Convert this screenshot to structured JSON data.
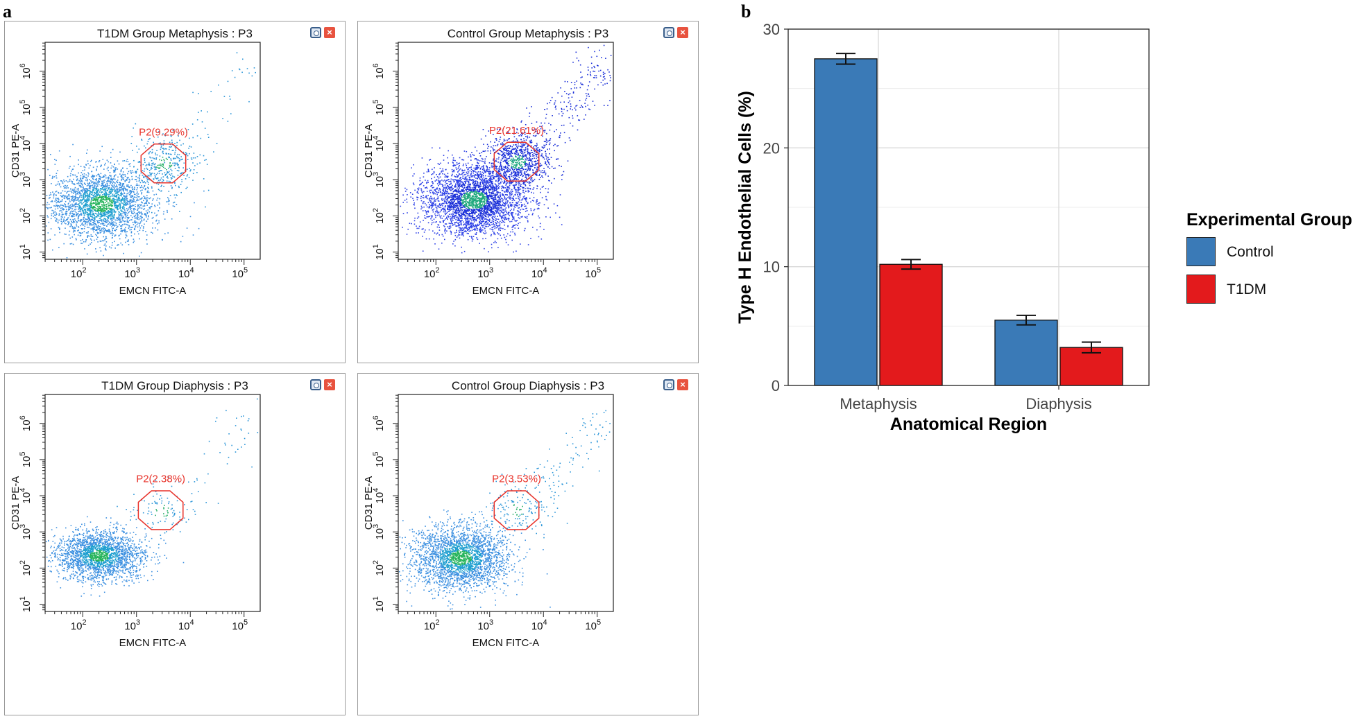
{
  "panel_labels": {
    "a": "a",
    "b": "b"
  },
  "flow_panels": [
    {
      "title": "T1DM Group Metaphysis : P3",
      "gate_label": "P2(9.29%)",
      "gate_pct": 9.29,
      "xlabel": "EMCN FITC-A",
      "ylabel": "CD31 PE-A",
      "palette": "green-blue"
    },
    {
      "title": "Control Group Metaphysis : P3",
      "gate_label": "P2(21.61%)",
      "gate_pct": 21.61,
      "xlabel": "EMCN FITC-A",
      "ylabel": "CD31 PE-A",
      "palette": "dark-blue"
    },
    {
      "title": "T1DM Group Diaphysis : P3",
      "gate_label": "P2(2.38%)",
      "gate_pct": 2.38,
      "xlabel": "EMCN FITC-A",
      "ylabel": "CD31 PE-A",
      "palette": "green-blue"
    },
    {
      "title": "Control Group Diaphysis : P3",
      "gate_label": "P2(3.53%)",
      "gate_pct": 3.53,
      "xlabel": "EMCN FITC-A",
      "ylabel": "CD31 PE-A",
      "palette": "green-blue"
    }
  ],
  "flow_axis": {
    "x_ticks": [
      {
        "base": "10",
        "exp": "2"
      },
      {
        "base": "10",
        "exp": "3"
      },
      {
        "base": "10",
        "exp": "4"
      },
      {
        "base": "10",
        "exp": "5"
      }
    ],
    "y_ticks": [
      {
        "base": "10",
        "exp": "1"
      },
      {
        "base": "10",
        "exp": "2"
      },
      {
        "base": "10",
        "exp": "3"
      },
      {
        "base": "10",
        "exp": "4"
      },
      {
        "base": "10",
        "exp": "5"
      },
      {
        "base": "10",
        "exp": "6"
      }
    ]
  },
  "chart_data": {
    "type": "bar",
    "title": "",
    "categories": [
      "Metaphysis",
      "Diaphysis"
    ],
    "series": [
      {
        "name": "Control",
        "color": "#3a7ab7",
        "values": [
          27.5,
          5.5
        ],
        "errors": [
          0.45,
          0.4
        ]
      },
      {
        "name": "T1DM",
        "color": "#e31a1c",
        "values": [
          10.2,
          3.2
        ],
        "errors": [
          0.4,
          0.45
        ]
      }
    ],
    "xlabel": "Anatomical Region",
    "ylabel": "Type H Endothelial Cells (%)",
    "ylim": [
      0,
      30
    ],
    "yticks": [
      "0",
      "10",
      "20",
      "30"
    ],
    "grid": true,
    "legend_title": "Experimental Group",
    "legend_position": "right"
  },
  "colors": {
    "gate": "#e8322a",
    "panel_border": "#9a9a9a",
    "grid": "#d9d9d9"
  },
  "icons": {
    "settings": "gear-icon",
    "close": "close-icon"
  }
}
